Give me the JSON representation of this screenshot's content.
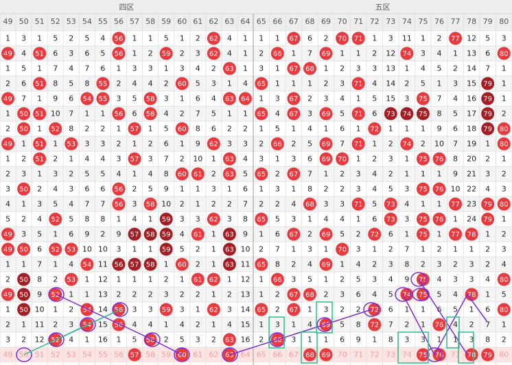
{
  "header": {
    "sections": [
      "四区",
      "五区"
    ],
    "columns": [
      49,
      50,
      51,
      52,
      53,
      54,
      55,
      56,
      57,
      58,
      59,
      60,
      61,
      62,
      63,
      64,
      65,
      66,
      67,
      68,
      69,
      70,
      71,
      72,
      73,
      74,
      75,
      76,
      77,
      78,
      79,
      80
    ]
  },
  "hit_color": "#e63a3f",
  "streak_color": "#a01e24",
  "rows": [
    [
      1,
      3,
      1,
      5,
      2,
      5,
      4,
      56,
      1,
      1,
      5,
      1,
      2,
      62,
      4,
      1,
      1,
      1,
      67,
      6,
      2,
      70,
      71,
      1,
      3,
      11,
      1,
      2,
      77,
      12,
      5,
      3
    ],
    [
      49,
      4,
      51,
      6,
      3,
      6,
      5,
      56,
      1,
      2,
      59,
      2,
      3,
      62,
      4,
      1,
      2,
      66,
      1,
      7,
      69,
      1,
      1,
      2,
      12,
      74,
      3,
      4,
      1,
      13,
      6,
      80
    ],
    [
      1,
      5,
      1,
      7,
      4,
      7,
      6,
      1,
      3,
      3,
      1,
      3,
      4,
      2,
      63,
      1,
      3,
      1,
      67,
      68,
      1,
      2,
      3,
      3,
      13,
      1,
      4,
      5,
      2,
      14,
      7,
      1
    ],
    [
      2,
      6,
      51,
      8,
      5,
      8,
      55,
      2,
      4,
      4,
      2,
      60,
      5,
      3,
      1,
      4,
      65,
      1,
      1,
      1,
      2,
      3,
      71,
      4,
      14,
      2,
      5,
      1,
      3,
      15,
      79,
      1
    ],
    [
      49,
      7,
      1,
      9,
      6,
      54,
      55,
      3,
      5,
      58,
      3,
      1,
      6,
      4,
      63,
      64,
      1,
      3,
      67,
      2,
      3,
      4,
      1,
      5,
      15,
      3,
      75,
      7,
      4,
      16,
      79,
      1
    ],
    [
      1,
      50,
      51,
      10,
      7,
      1,
      1,
      56,
      6,
      58,
      4,
      2,
      7,
      5,
      1,
      1,
      65,
      4,
      67,
      3,
      69,
      5,
      71,
      6,
      73,
      74,
      75,
      8,
      5,
      17,
      79,
      2
    ],
    [
      2,
      50,
      1,
      52,
      8,
      2,
      2,
      1,
      57,
      1,
      5,
      60,
      8,
      6,
      2,
      2,
      1,
      5,
      1,
      4,
      1,
      6,
      1,
      72,
      1,
      1,
      1,
      9,
      6,
      18,
      79,
      80
    ],
    [
      49,
      1,
      51,
      1,
      53,
      3,
      3,
      2,
      1,
      2,
      6,
      1,
      9,
      62,
      3,
      3,
      2,
      66,
      2,
      5,
      69,
      7,
      71,
      1,
      2,
      74,
      2,
      10,
      7,
      19,
      1,
      80
    ],
    [
      1,
      2,
      51,
      2,
      1,
      4,
      4,
      3,
      57,
      3,
      7,
      2,
      10,
      1,
      63,
      4,
      3,
      1,
      3,
      6,
      69,
      70,
      1,
      2,
      3,
      1,
      75,
      76,
      8,
      20,
      2,
      1
    ],
    [
      2,
      3,
      1,
      3,
      2,
      5,
      5,
      4,
      1,
      4,
      8,
      60,
      61,
      2,
      63,
      5,
      65,
      2,
      67,
      7,
      1,
      2,
      3,
      4,
      2,
      1,
      1,
      1,
      9,
      21,
      3,
      2
    ],
    [
      3,
      50,
      2,
      4,
      3,
      6,
      6,
      56,
      2,
      5,
      9,
      1,
      1,
      3,
      1,
      6,
      1,
      3,
      1,
      8,
      2,
      2,
      3,
      4,
      5,
      3,
      75,
      76,
      10,
      22,
      4,
      3
    ],
    [
      4,
      1,
      3,
      5,
      4,
      7,
      7,
      56,
      3,
      58,
      10,
      2,
      1,
      2,
      2,
      7,
      2,
      2,
      4,
      68,
      3,
      3,
      71,
      5,
      73,
      4,
      1,
      1,
      77,
      23,
      79,
      80
    ],
    [
      5,
      2,
      4,
      52,
      5,
      8,
      8,
      1,
      4,
      1,
      59,
      3,
      3,
      62,
      3,
      8,
      65,
      5,
      3,
      1,
      4,
      4,
      1,
      6,
      73,
      3,
      75,
      76,
      1,
      24,
      79,
      1
    ],
    [
      49,
      3,
      5,
      1,
      6,
      9,
      2,
      9,
      57,
      58,
      59,
      4,
      61,
      1,
      63,
      9,
      1,
      6,
      67,
      2,
      69,
      5,
      2,
      72,
      6,
      1,
      75,
      1,
      77,
      78,
      1,
      2
    ],
    [
      49,
      50,
      6,
      52,
      53,
      10,
      10,
      3,
      1,
      1,
      59,
      5,
      2,
      1,
      63,
      10,
      2,
      7,
      1,
      3,
      1,
      70,
      3,
      1,
      2,
      7,
      1,
      2,
      1,
      1,
      2,
      3
    ],
    [
      1,
      1,
      7,
      1,
      4,
      54,
      11,
      56,
      57,
      58,
      1,
      60,
      2,
      1,
      63,
      11,
      65,
      8,
      2,
      4,
      69,
      1,
      4,
      2,
      3,
      8,
      2,
      3,
      2,
      3,
      2,
      4
    ],
    [
      2,
      50,
      8,
      2,
      53,
      1,
      12,
      1,
      1,
      1,
      2,
      1,
      61,
      62,
      1,
      12,
      1,
      66,
      3,
      5,
      1,
      2,
      5,
      3,
      4,
      9,
      75,
      4,
      3,
      3,
      4,
      80
    ],
    [
      49,
      50,
      9,
      52,
      1,
      1,
      13,
      2,
      2,
      2,
      3,
      2,
      2,
      1,
      2,
      13,
      1,
      2,
      67,
      68,
      2,
      3,
      6,
      4,
      5,
      74,
      75,
      5,
      4,
      78,
      1,
      5
    ],
    [
      1,
      50,
      10,
      1,
      2,
      54,
      14,
      56,
      3,
      3,
      59,
      3,
      1,
      62,
      3,
      14,
      65,
      2,
      67,
      1,
      3,
      2,
      2,
      72,
      6,
      1,
      1,
      6,
      5,
      1,
      6,
      80
    ],
    [
      2,
      1,
      11,
      2,
      3,
      54,
      15,
      56,
      4,
      4,
      1,
      4,
      2,
      1,
      4,
      15,
      1,
      3,
      1,
      4,
      69,
      5,
      8,
      72,
      7,
      2,
      1,
      76,
      4,
      2,
      7,
      1
    ],
    [
      3,
      2,
      12,
      52,
      4,
      1,
      16,
      1,
      5,
      58,
      2,
      5,
      3,
      2,
      63,
      16,
      2,
      66,
      3,
      1,
      1,
      6,
      9,
      1,
      8,
      3,
      3,
      1,
      1,
      3,
      8,
      2
    ]
  ],
  "pending": {
    "numbers": [
      49,
      50,
      51,
      52,
      53,
      54,
      55,
      56,
      57,
      58,
      59,
      60,
      61,
      62,
      63,
      64,
      65,
      66,
      67,
      68,
      69,
      70,
      71,
      72,
      73,
      74,
      75,
      76,
      77,
      78,
      79,
      80
    ],
    "picked": [
      57,
      60,
      63,
      68,
      69,
      75,
      76,
      78,
      79
    ]
  }
}
